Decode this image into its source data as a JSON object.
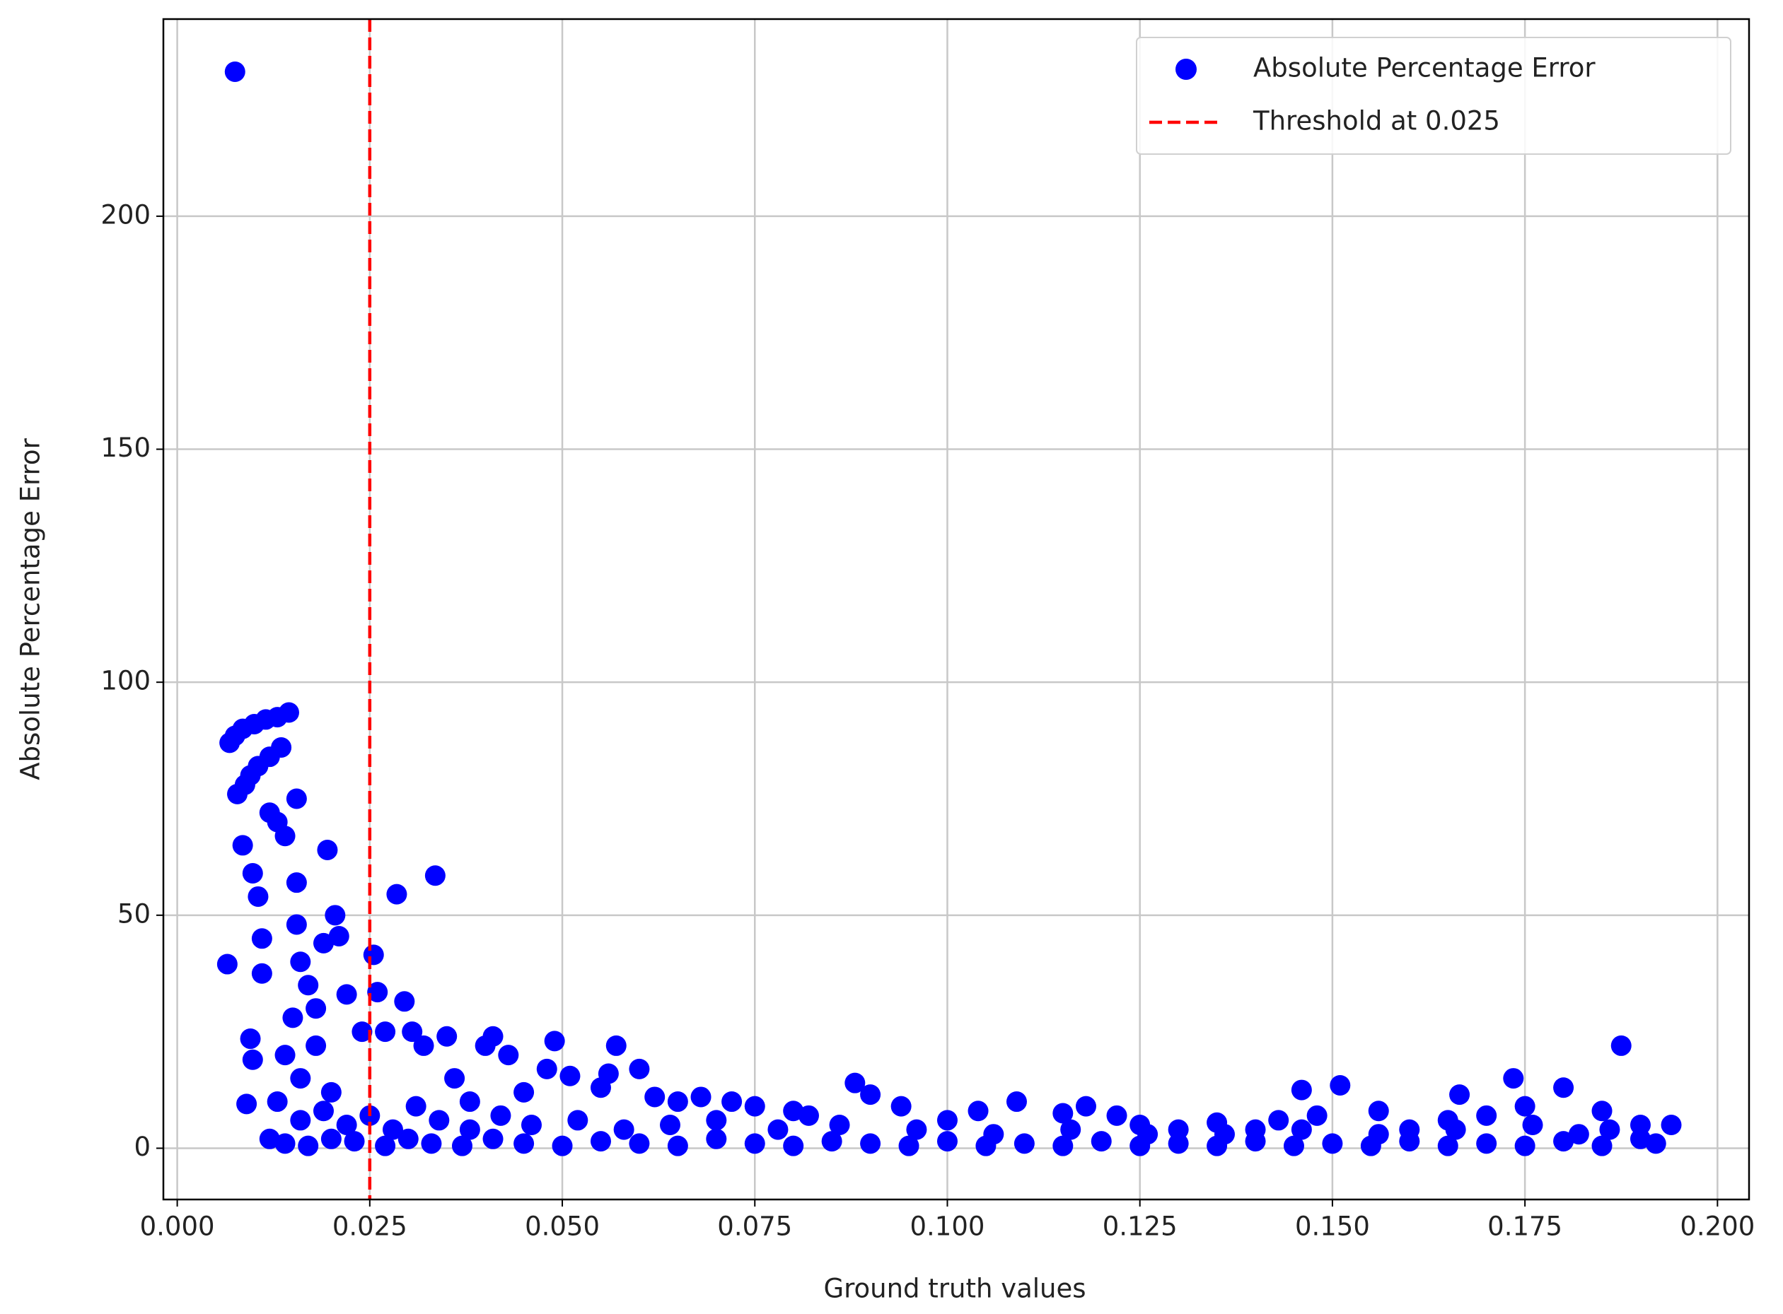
{
  "chart_data": {
    "type": "scatter",
    "x_label": "Ground truth values",
    "y_label": "Absolute Percentage Error",
    "x": [
      0.0075,
      0.0065,
      0.009,
      0.0095,
      0.0098,
      0.0068,
      0.0075,
      0.0085,
      0.01,
      0.0115,
      0.013,
      0.0145,
      0.0078,
      0.0088,
      0.0095,
      0.0105,
      0.012,
      0.0135,
      0.0085,
      0.0098,
      0.0105,
      0.011,
      0.011,
      0.012,
      0.013,
      0.014,
      0.0155,
      0.0155,
      0.0195,
      0.0205,
      0.021,
      0.0155,
      0.016,
      0.017,
      0.018,
      0.019,
      0.012,
      0.013,
      0.014,
      0.015,
      0.016,
      0.018,
      0.02,
      0.022,
      0.024,
      0.0255,
      0.026,
      0.027,
      0.0285,
      0.0295,
      0.0305,
      0.0335,
      0.032,
      0.035,
      0.036,
      0.038,
      0.04,
      0.041,
      0.043,
      0.045,
      0.048,
      0.049,
      0.051,
      0.055,
      0.057,
      0.056,
      0.06,
      0.062,
      0.065,
      0.068,
      0.072,
      0.075,
      0.08,
      0.082,
      0.088,
      0.09,
      0.094,
      0.1,
      0.104,
      0.109,
      0.115,
      0.118,
      0.122,
      0.125,
      0.13,
      0.135,
      0.14,
      0.143,
      0.146,
      0.148,
      0.151,
      0.156,
      0.16,
      0.165,
      0.1665,
      0.17,
      0.1735,
      0.175,
      0.18,
      0.185,
      0.1875,
      0.19,
      0.194,
      0.192,
      0.014,
      0.017,
      0.02,
      0.023,
      0.027,
      0.03,
      0.033,
      0.037,
      0.041,
      0.045,
      0.05,
      0.055,
      0.06,
      0.065,
      0.07,
      0.075,
      0.08,
      0.085,
      0.09,
      0.095,
      0.1,
      0.105,
      0.11,
      0.115,
      0.12,
      0.125,
      0.13,
      0.135,
      0.14,
      0.145,
      0.15,
      0.155,
      0.16,
      0.165,
      0.17,
      0.175,
      0.18,
      0.185,
      0.19,
      0.016,
      0.019,
      0.022,
      0.025,
      0.028,
      0.031,
      0.034,
      0.038,
      0.042,
      0.046,
      0.052,
      0.058,
      0.064,
      0.07,
      0.078,
      0.086,
      0.096,
      0.106,
      0.116,
      0.126,
      0.136,
      0.146,
      0.156,
      0.166,
      0.176,
      0.186,
      0.182
    ],
    "series": [
      {
        "name": "Absolute Percentage Error",
        "color": "#0000ff",
        "values": [
          231,
          39.5,
          9.5,
          23.5,
          19,
          87,
          88.5,
          90,
          91,
          92,
          92.5,
          93.5,
          76,
          78,
          80,
          82,
          84,
          86,
          65,
          59,
          54,
          45,
          37.5,
          72,
          70,
          67,
          75,
          57,
          64,
          50,
          45.5,
          48,
          40,
          35,
          30,
          44,
          2,
          10,
          20,
          28,
          15,
          22,
          12,
          33,
          25,
          41.5,
          33.5,
          25,
          54.5,
          31.5,
          25,
          58.5,
          22,
          24,
          15,
          10,
          22,
          24,
          20,
          12,
          17,
          23,
          15.5,
          13,
          22,
          16,
          17,
          11,
          10,
          11,
          10,
          9,
          8,
          7,
          14,
          11.5,
          9,
          6,
          8,
          10,
          7.5,
          9,
          7,
          5,
          4,
          5.5,
          4,
          6,
          12.5,
          7,
          13.5,
          8,
          4,
          6,
          11.5,
          7,
          15,
          9,
          13,
          8,
          22,
          5,
          5,
          1,
          1,
          0.5,
          2,
          1.5,
          0.5,
          2,
          1,
          0.5,
          2,
          1,
          0.5,
          1.5,
          1,
          0.5,
          2,
          1,
          0.5,
          1.5,
          1,
          0.5,
          1.5,
          0.5,
          1,
          0.5,
          1.5,
          0.5,
          1,
          0.5,
          1.5,
          0.5,
          1,
          0.5,
          1.5,
          0.5,
          1,
          0.5,
          1.5,
          0.5,
          2,
          6,
          8,
          5,
          7,
          4,
          9,
          6,
          4,
          7,
          5,
          6,
          4,
          5,
          6,
          4,
          5,
          4,
          3,
          4,
          3,
          3,
          4,
          3,
          4,
          5,
          4,
          3
        ]
      }
    ],
    "threshold": {
      "name": "Threshold at 0.025",
      "value": 0.025,
      "color": "#ff0000"
    },
    "xlim": [
      -0.0018,
      0.2041
    ],
    "ylim": [
      -11,
      242.3
    ],
    "xticks": [
      {
        "value": 0,
        "label": "0.000"
      },
      {
        "value": 0.025,
        "label": "0.025"
      },
      {
        "value": 0.05,
        "label": "0.050"
      },
      {
        "value": 0.075,
        "label": "0.075"
      },
      {
        "value": 0.1,
        "label": "0.100"
      },
      {
        "value": 0.125,
        "label": "0.125"
      },
      {
        "value": 0.15,
        "label": "0.150"
      },
      {
        "value": 0.175,
        "label": "0.175"
      },
      {
        "value": 0.2,
        "label": "0.200"
      }
    ],
    "yticks": [
      0,
      50,
      100,
      150,
      200
    ],
    "grid": true,
    "legend": "upper right"
  }
}
